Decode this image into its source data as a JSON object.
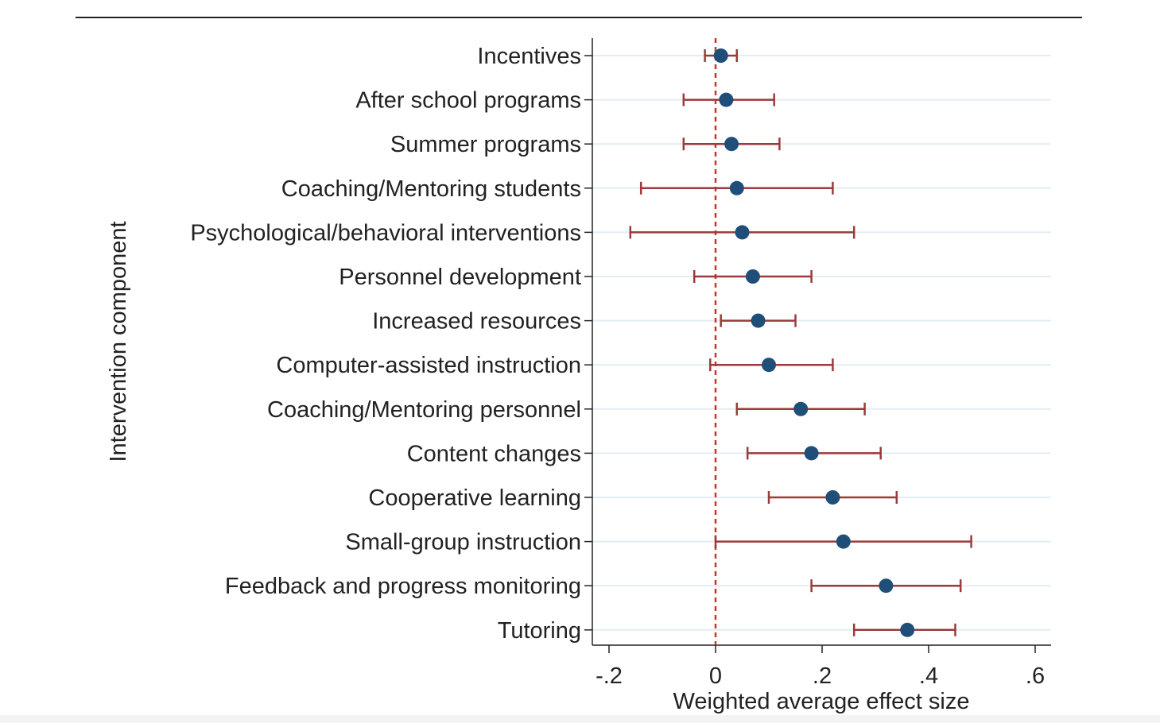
{
  "chart_data": {
    "type": "scatter",
    "subtype": "forest-plot-with-confidence-intervals",
    "title": "",
    "xlabel": "Weighted average effect size",
    "ylabel": "Intervention component",
    "xlim": [
      -0.23,
      0.63
    ],
    "x_ticks": [
      -0.2,
      0,
      0.2,
      0.4,
      0.6
    ],
    "x_tick_labels": [
      "-.2",
      "0",
      ".2",
      ".4",
      ".6"
    ],
    "reference_line": {
      "x": 0,
      "style": "dashed",
      "color": "#c0392b"
    },
    "grid": "horizontal",
    "legend": "none",
    "colors": {
      "point": "#1f4e79",
      "interval": "#9b3a3a",
      "grid": "#e3edf3",
      "axis": "#222222",
      "reference": "#c0392b"
    },
    "categories": [
      "Incentives",
      "After school programs",
      "Summer programs",
      "Coaching/Mentoring students",
      "Psychological/behavioral interventions",
      "Personnel development",
      "Increased resources",
      "Computer-assisted instruction",
      "Coaching/Mentoring personnel",
      "Content changes",
      "Cooperative learning",
      "Small-group instruction",
      "Feedback and progress monitoring",
      "Tutoring"
    ],
    "estimates": [
      0.01,
      0.02,
      0.03,
      0.04,
      0.05,
      0.07,
      0.08,
      0.1,
      0.16,
      0.18,
      0.22,
      0.24,
      0.32,
      0.36
    ],
    "ci_lower": [
      -0.02,
      -0.06,
      -0.06,
      -0.14,
      -0.16,
      -0.04,
      0.01,
      -0.01,
      0.04,
      0.06,
      0.1,
      0.0,
      0.18,
      0.26
    ],
    "ci_upper": [
      0.04,
      0.11,
      0.12,
      0.22,
      0.26,
      0.18,
      0.15,
      0.22,
      0.28,
      0.31,
      0.34,
      0.48,
      0.46,
      0.45
    ]
  }
}
